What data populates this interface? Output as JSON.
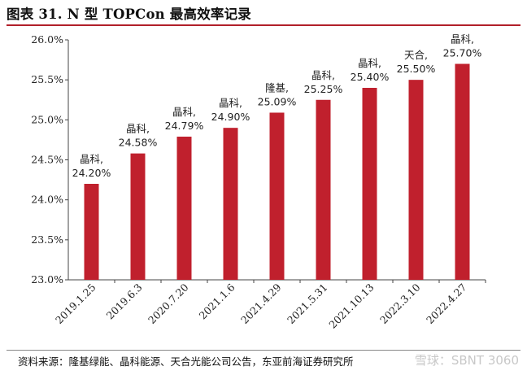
{
  "header": {
    "title": "图表 31. N 型 TOPCon 最高效率记录"
  },
  "footer": {
    "source": "资料来源：隆基绿能、晶科能源、天合光能公司公告，东亚前海证券研究所",
    "watermark": "雪球：SBNT 3060"
  },
  "colors": {
    "bar": "#c0202d",
    "accent": "#b11f2a"
  },
  "chart_data": {
    "type": "bar",
    "title": "N 型 TOPCon 最高效率记录",
    "xlabel": "",
    "ylabel": "",
    "ylim": [
      23.0,
      26.0
    ],
    "yticks": [
      "23.0%",
      "23.5%",
      "24.0%",
      "24.5%",
      "25.0%",
      "25.5%",
      "26.0%"
    ],
    "grid": false,
    "legend": "none",
    "categories": [
      "2019.1.25",
      "2019.6.3",
      "2020.7.20",
      "2021.1.6",
      "2021.4.29",
      "2021.5.31",
      "2021.10.13",
      "2022.3.10",
      "2022.4.27"
    ],
    "values": [
      24.2,
      24.58,
      24.79,
      24.9,
      25.09,
      25.25,
      25.4,
      25.5,
      25.7
    ],
    "companies": [
      "晶科,",
      "晶科,",
      "晶科,",
      "晶科,",
      "隆基,",
      "晶科,",
      "晶科,",
      "天合,",
      "晶科,"
    ],
    "value_labels": [
      "24.20%",
      "24.58%",
      "24.79%",
      "24.90%",
      "25.09%",
      "25.25%",
      "25.40%",
      "25.50%",
      "25.70%"
    ]
  }
}
